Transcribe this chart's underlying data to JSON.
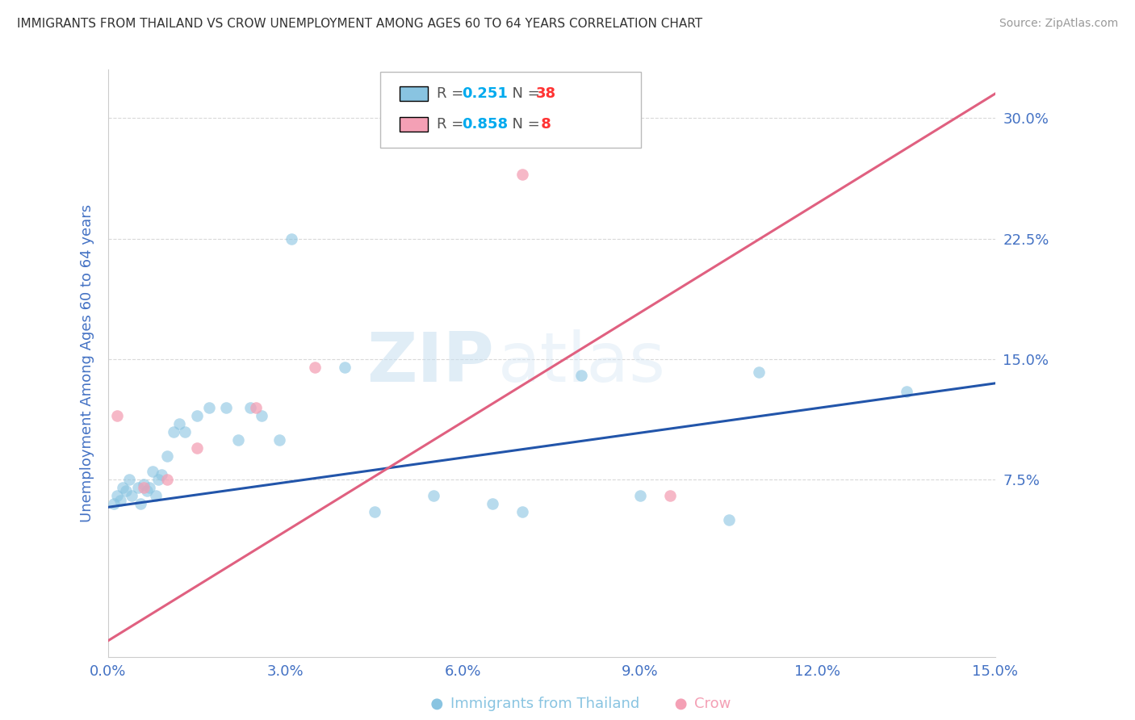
{
  "title": "IMMIGRANTS FROM THAILAND VS CROW UNEMPLOYMENT AMONG AGES 60 TO 64 YEARS CORRELATION CHART",
  "source": "Source: ZipAtlas.com",
  "ylabel": "Unemployment Among Ages 60 to 64 years",
  "x_tick_labels": [
    "0.0%",
    "3.0%",
    "6.0%",
    "9.0%",
    "12.0%",
    "15.0%"
  ],
  "x_tick_vals": [
    0.0,
    3.0,
    6.0,
    9.0,
    12.0,
    15.0
  ],
  "y_tick_labels": [
    "7.5%",
    "15.0%",
    "22.5%",
    "30.0%"
  ],
  "y_tick_vals": [
    7.5,
    15.0,
    22.5,
    30.0
  ],
  "xlim": [
    0.0,
    15.0
  ],
  "ylim": [
    -3.5,
    33
  ],
  "blue_scatter_x": [
    0.1,
    0.15,
    0.2,
    0.25,
    0.3,
    0.35,
    0.4,
    0.5,
    0.55,
    0.6,
    0.65,
    0.7,
    0.75,
    0.8,
    0.85,
    0.9,
    1.0,
    1.1,
    1.2,
    1.3,
    1.5,
    1.7,
    2.0,
    2.2,
    2.4,
    2.6,
    2.9,
    3.1,
    4.0,
    4.5,
    5.5,
    6.5,
    7.0,
    8.0,
    9.0,
    10.5,
    11.0,
    13.5
  ],
  "blue_scatter_y": [
    6.0,
    6.5,
    6.2,
    7.0,
    6.8,
    7.5,
    6.5,
    7.0,
    6.0,
    7.2,
    6.8,
    7.0,
    8.0,
    6.5,
    7.5,
    7.8,
    9.0,
    10.5,
    11.0,
    10.5,
    11.5,
    12.0,
    12.0,
    10.0,
    12.0,
    11.5,
    10.0,
    22.5,
    14.5,
    5.5,
    6.5,
    6.0,
    5.5,
    14.0,
    6.5,
    5.0,
    14.2,
    13.0
  ],
  "pink_scatter_x": [
    0.15,
    0.6,
    1.0,
    1.5,
    2.5,
    3.5,
    7.0,
    9.5
  ],
  "pink_scatter_y": [
    11.5,
    7.0,
    7.5,
    9.5,
    12.0,
    14.5,
    26.5,
    6.5
  ],
  "blue_line_x": [
    0.0,
    15.0
  ],
  "blue_line_y": [
    5.8,
    13.5
  ],
  "pink_line_x": [
    0.0,
    15.0
  ],
  "pink_line_y": [
    -2.5,
    31.5
  ],
  "dot_size": 110,
  "blue_color": "#89c4e1",
  "pink_color": "#f4a0b5",
  "blue_line_color": "#2255aa",
  "pink_line_color": "#e06080",
  "grid_color": "#d0d0d0",
  "background_color": "#ffffff",
  "title_color": "#333333",
  "axis_label_color": "#4472c4",
  "tick_label_color": "#4472c4",
  "watermark_zip": "ZIP",
  "watermark_atlas": "atlas",
  "legend_r1": "0.251",
  "legend_n1": "38",
  "legend_r2": "0.858",
  "legend_n2": "8",
  "legend_color1": "#89c4e1",
  "legend_color2": "#f4a0b5",
  "r_color": "#00aaee",
  "n_color": "#ff3333",
  "bottom_label1": "Immigrants from Thailand",
  "bottom_label2": "Crow"
}
